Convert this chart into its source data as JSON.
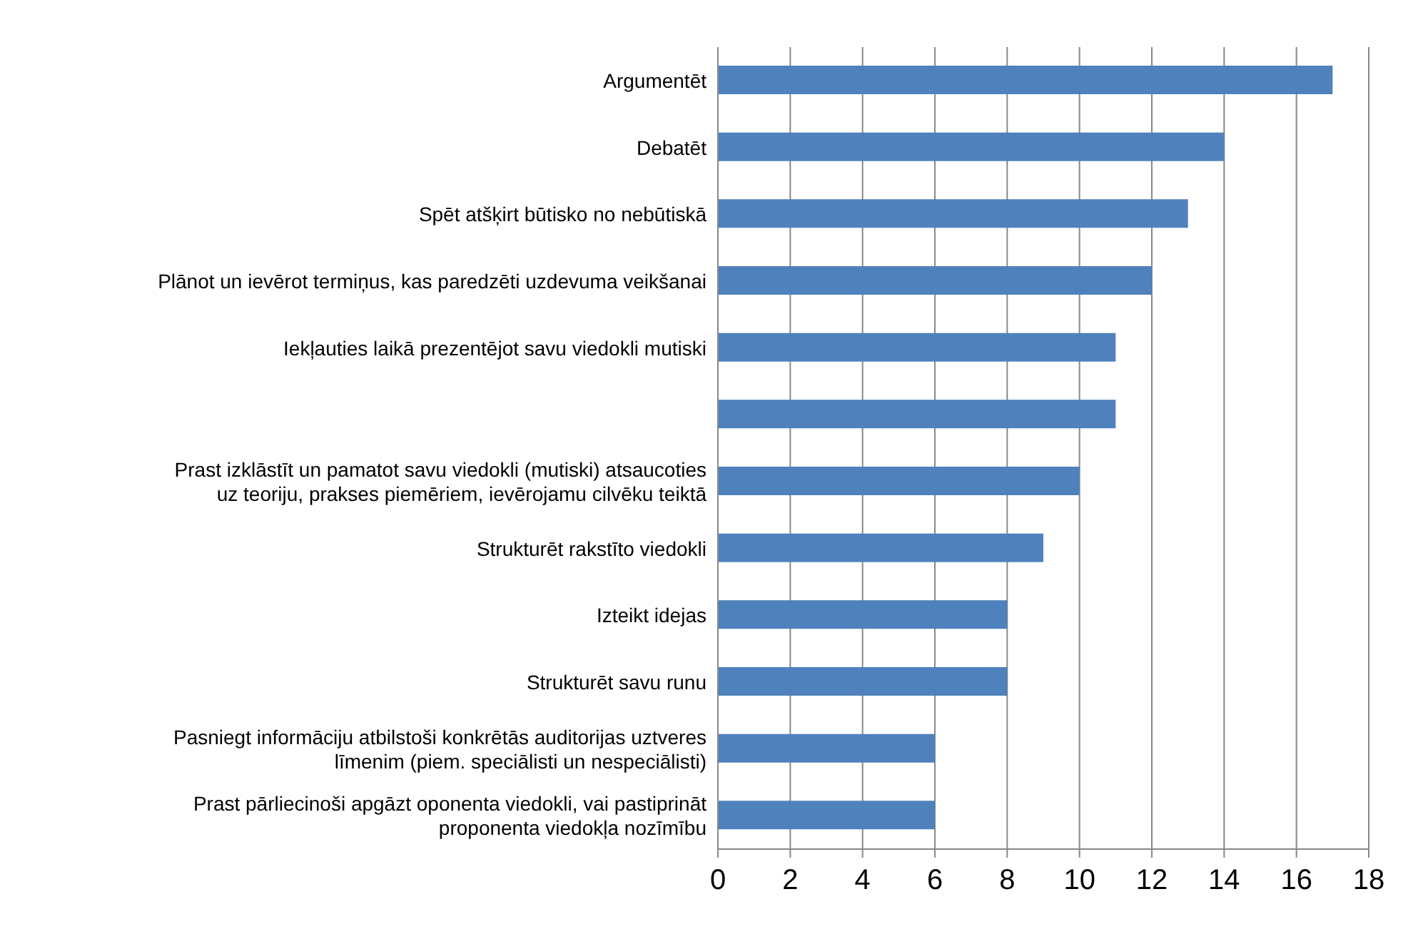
{
  "chart_data": {
    "type": "bar",
    "orientation": "horizontal",
    "categories": [
      "Argumentēt",
      "Debatēt",
      "Spēt atšķirt būtisko no nebūtiskā",
      "Plānot un ievērot termiņus, kas paredzēti uzdevuma veikšanai",
      "Iekļauties laikā prezentējot savu viedokli mutiski",
      null,
      "Prast izklāstīt un pamatot savu viedokli (mutiski) atsaucoties uz teoriju, prakses piemēriem, ievērojamu cilvēku teiktā",
      "Strukturēt rakstīto viedokli",
      "Izteikt idejas",
      "Strukturēt savu runu",
      "Pasniegt informāciju atbilstoši konkrētās auditorijas uztveres līmenim (piem. speciālisti un nespeciālisti)",
      "Prast pārliecinoši apgāzt oponenta viedokli, vai pastiprināt proponenta viedokļa nozīmību"
    ],
    "values": [
      17,
      14,
      13,
      12,
      11,
      11,
      10,
      9,
      8,
      8,
      6,
      6
    ],
    "color": "#4f81bd",
    "xlim": [
      0,
      18
    ],
    "xticks": [
      0,
      2,
      4,
      6,
      8,
      10,
      12,
      14,
      16,
      18
    ],
    "grid": "x",
    "legend": false
  }
}
